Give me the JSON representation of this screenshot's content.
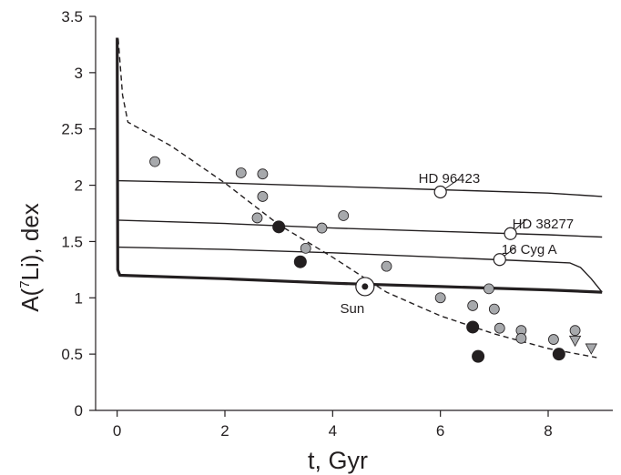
{
  "chart_data": {
    "type": "scatter",
    "xlabel": "t, Gyr",
    "ylabel_parts": {
      "pre": "A(",
      "sup": "7",
      "post": "Li), dex"
    },
    "xlim": [
      -0.4,
      9.2
    ],
    "ylim": [
      0,
      3.5
    ],
    "xticks": [
      0,
      2,
      4,
      6,
      8
    ],
    "yticks": [
      0,
      0.5,
      1,
      1.5,
      2,
      2.5,
      3,
      3.5
    ],
    "ytick_labels": [
      "0",
      "0.5",
      "1",
      "1.5",
      "2",
      "2.5",
      "3",
      "3.5"
    ],
    "grid": false,
    "colors": {
      "gray_point": "#a7a9ac",
      "black_point": "#231f20",
      "ink": "#231f20",
      "white": "#ffffff"
    },
    "model_curves": [
      {
        "style": "thick",
        "points": [
          [
            0,
            3.31
          ],
          [
            0.01,
            1.25
          ],
          [
            0.05,
            1.2
          ],
          [
            2,
            1.17
          ],
          [
            4,
            1.13
          ],
          [
            6,
            1.1
          ],
          [
            8,
            1.07
          ],
          [
            9,
            1.05
          ]
        ]
      },
      {
        "style": "thin",
        "points": [
          [
            0,
            2.04
          ],
          [
            2,
            2.02
          ],
          [
            4,
            1.99
          ],
          [
            6,
            1.96
          ],
          [
            8,
            1.93
          ],
          [
            9,
            1.9
          ]
        ]
      },
      {
        "style": "thin",
        "points": [
          [
            0,
            1.69
          ],
          [
            2,
            1.66
          ],
          [
            4,
            1.62
          ],
          [
            6,
            1.59
          ],
          [
            8,
            1.56
          ],
          [
            9,
            1.54
          ]
        ]
      },
      {
        "style": "thin",
        "points": [
          [
            0,
            1.45
          ],
          [
            2,
            1.43
          ],
          [
            4,
            1.4
          ],
          [
            6,
            1.36
          ],
          [
            7.5,
            1.33
          ],
          [
            8.4,
            1.31
          ],
          [
            8.6,
            1.27
          ],
          [
            8.8,
            1.17
          ],
          [
            9,
            1.05
          ]
        ]
      },
      {
        "style": "dashed",
        "points": [
          [
            0.02,
            3.3
          ],
          [
            0.1,
            2.8
          ],
          [
            0.2,
            2.56
          ],
          [
            1,
            2.35
          ],
          [
            2,
            2.02
          ],
          [
            3,
            1.65
          ],
          [
            4,
            1.36
          ],
          [
            5,
            1.05
          ],
          [
            6,
            0.84
          ],
          [
            7,
            0.68
          ],
          [
            8,
            0.55
          ],
          [
            8.9,
            0.47
          ]
        ]
      }
    ],
    "gray_points": [
      [
        0.7,
        2.21
      ],
      [
        2.3,
        2.11
      ],
      [
        2.7,
        2.1
      ],
      [
        2.7,
        1.9
      ],
      [
        2.6,
        1.71
      ],
      [
        3.5,
        1.44
      ],
      [
        3.8,
        1.62
      ],
      [
        4.2,
        1.73
      ],
      [
        5.0,
        1.28
      ],
      [
        6.0,
        1.0
      ],
      [
        6.6,
        0.93
      ],
      [
        6.9,
        1.08
      ],
      [
        7.0,
        0.9
      ],
      [
        7.1,
        0.73
      ],
      [
        7.5,
        0.71
      ],
      [
        7.5,
        0.64
      ],
      [
        8.1,
        0.63
      ],
      [
        8.5,
        0.71
      ]
    ],
    "black_points": [
      [
        3.0,
        1.63
      ],
      [
        3.4,
        1.32
      ],
      [
        6.6,
        0.74
      ],
      [
        6.7,
        0.48
      ],
      [
        8.2,
        0.5
      ]
    ],
    "upper_limits": [
      [
        8.5,
        0.62
      ],
      [
        8.8,
        0.55
      ]
    ],
    "labeled_stars": [
      {
        "label": "HD 96423",
        "x": 6.0,
        "y": 1.94
      },
      {
        "label": "HD 38277",
        "x": 7.3,
        "y": 1.57
      },
      {
        "label": "16 Cyg A",
        "x": 7.1,
        "y": 1.34
      }
    ],
    "sun": {
      "label": "Sun",
      "x": 4.6,
      "y": 1.1
    }
  }
}
